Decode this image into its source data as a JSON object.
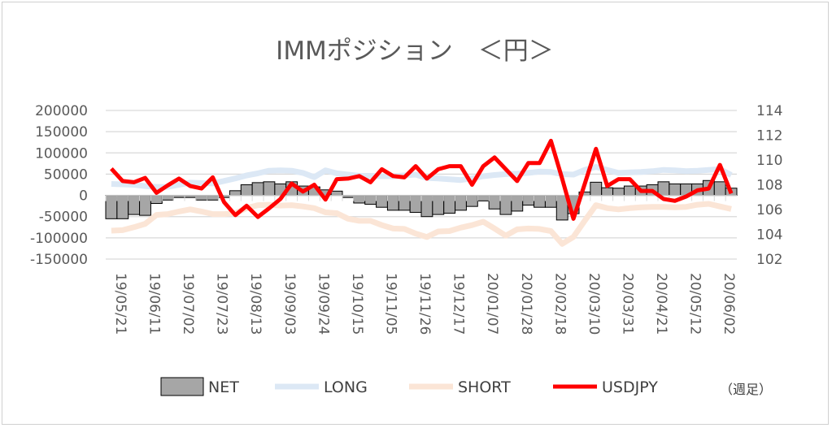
{
  "chart_data": {
    "type": "bar+line",
    "title": "IMMポジション　＜円＞",
    "note": "（週足）",
    "categories_labels": [
      "19/05/21",
      "19/06/11",
      "19/07/02",
      "19/07/23",
      "19/08/13",
      "19/09/03",
      "19/09/24",
      "19/10/15",
      "19/11/05",
      "19/11/26",
      "19/12/17",
      "20/01/07",
      "20/01/28",
      "20/02/18",
      "20/03/10",
      "20/03/31",
      "20/04/21",
      "20/05/12",
      "20/06/02"
    ],
    "label_every": 3,
    "left_axis": {
      "min": -150000,
      "max": 200000,
      "step": 50000,
      "ticks": [
        "200000",
        "150000",
        "100000",
        "50000",
        "0",
        "-50000",
        "-100000",
        "-150000"
      ]
    },
    "right_axis": {
      "min": 102,
      "max": 114,
      "step": 2,
      "ticks": [
        "114",
        "112",
        "110",
        "108",
        "106",
        "104",
        "102"
      ]
    },
    "grid": true,
    "legend_position": "bottom",
    "series": [
      {
        "name": "NET",
        "type": "bar",
        "axis": "left",
        "color": "#a6a6a6",
        "values": [
          -55000,
          -55000,
          -45000,
          -47000,
          -19000,
          -11000,
          -5000,
          -5000,
          -11000,
          -11000,
          -5000,
          11000,
          25000,
          30000,
          32000,
          27000,
          32000,
          22000,
          20000,
          13000,
          10000,
          -5000,
          -18000,
          -21000,
          -28000,
          -35000,
          -35000,
          -40000,
          -50000,
          -45000,
          -42000,
          -35000,
          -26000,
          -13000,
          -32000,
          -45000,
          -37000,
          -23000,
          -28000,
          -28000,
          -58000,
          -43000,
          8000,
          31000,
          18000,
          17000,
          22000,
          22000,
          25000,
          32000,
          27000,
          27000,
          27000,
          35000,
          32000,
          17000
        ]
      },
      {
        "name": "LONG",
        "type": "line",
        "axis": "left",
        "color": "#dce8f5",
        "values": [
          27000,
          26000,
          25000,
          22000,
          20000,
          20000,
          25000,
          30000,
          29000,
          28000,
          34000,
          40000,
          47000,
          52000,
          58000,
          59000,
          58000,
          53000,
          43000,
          59000,
          52000,
          49000,
          46000,
          46000,
          45000,
          45000,
          47000,
          49000,
          41000,
          40000,
          38000,
          36000,
          40000,
          45000,
          48000,
          50000,
          51000,
          53000,
          56000,
          55000,
          50000,
          49000,
          60000,
          67000,
          60000,
          53000,
          54000,
          55000,
          57000,
          60000,
          59000,
          57000,
          58000,
          60000,
          62000,
          48000
        ]
      },
      {
        "name": "SHORT",
        "type": "line",
        "axis": "left",
        "color": "#fbe5d6",
        "values": [
          -83000,
          -82000,
          -75000,
          -67000,
          -46000,
          -44000,
          -38000,
          -33000,
          -38000,
          -44000,
          -44000,
          -42000,
          -30000,
          -23000,
          -22000,
          -24000,
          -23000,
          -26000,
          -30000,
          -40000,
          -42000,
          -55000,
          -60000,
          -60000,
          -70000,
          -78000,
          -79000,
          -90000,
          -98000,
          -85000,
          -84000,
          -76000,
          -70000,
          -62000,
          -78000,
          -95000,
          -80000,
          -78000,
          -79000,
          -84000,
          -114000,
          -98000,
          -60000,
          -23000,
          -30000,
          -33000,
          -30000,
          -28000,
          -27000,
          -27000,
          -28000,
          -27000,
          -22000,
          -20000,
          -26000,
          -32000
        ]
      },
      {
        "name": "USDJPY",
        "type": "line",
        "axis": "right",
        "color": "#ff0000",
        "values": [
          109.3,
          108.3,
          108.2,
          108.55,
          107.35,
          107.95,
          108.5,
          107.9,
          107.7,
          108.6,
          106.6,
          105.55,
          106.3,
          105.4,
          106.1,
          106.85,
          108.1,
          107.45,
          108.0,
          106.8,
          108.45,
          108.5,
          108.7,
          108.2,
          109.25,
          108.7,
          108.6,
          109.5,
          108.5,
          109.25,
          109.5,
          109.5,
          108.0,
          109.5,
          110.2,
          109.25,
          108.3,
          109.75,
          109.75,
          111.55,
          108.5,
          105.25,
          108.05,
          110.9,
          107.9,
          108.45,
          108.45,
          107.5,
          107.5,
          106.85,
          106.7,
          107.05,
          107.55,
          107.7,
          109.6,
          107.3
        ]
      }
    ]
  }
}
